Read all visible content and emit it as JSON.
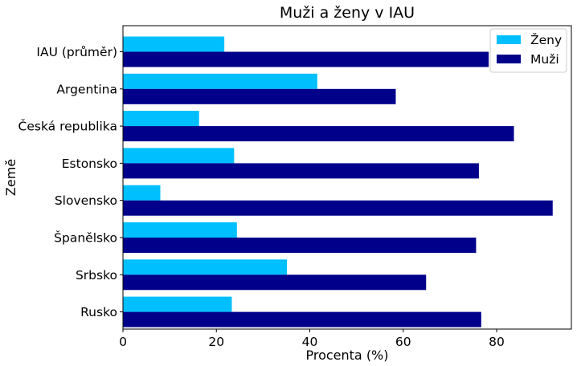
{
  "chart_data": {
    "type": "bar",
    "orientation": "horizontal",
    "title": "Muži a ženy v IAU",
    "xlabel": "Procenta (%)",
    "ylabel": "Země",
    "xlim": [
      0,
      96
    ],
    "xticks": [
      0,
      20,
      40,
      60,
      80
    ],
    "grid": false,
    "legend_position": "top-right",
    "categories": [
      "IAU (průměr)",
      "Argentina",
      "Česká republika",
      "Estonsko",
      "Slovensko",
      "Španělsko",
      "Srbsko",
      "Rusko"
    ],
    "series": [
      {
        "name": "Ženy",
        "color": "#00bfff",
        "values": [
          21.7,
          41.6,
          16.3,
          23.8,
          8.0,
          24.4,
          35.1,
          23.3
        ]
      },
      {
        "name": "Muži",
        "color": "#00008b",
        "values": [
          78.3,
          58.4,
          83.7,
          76.2,
          92.0,
          75.6,
          64.9,
          76.7
        ]
      }
    ]
  }
}
